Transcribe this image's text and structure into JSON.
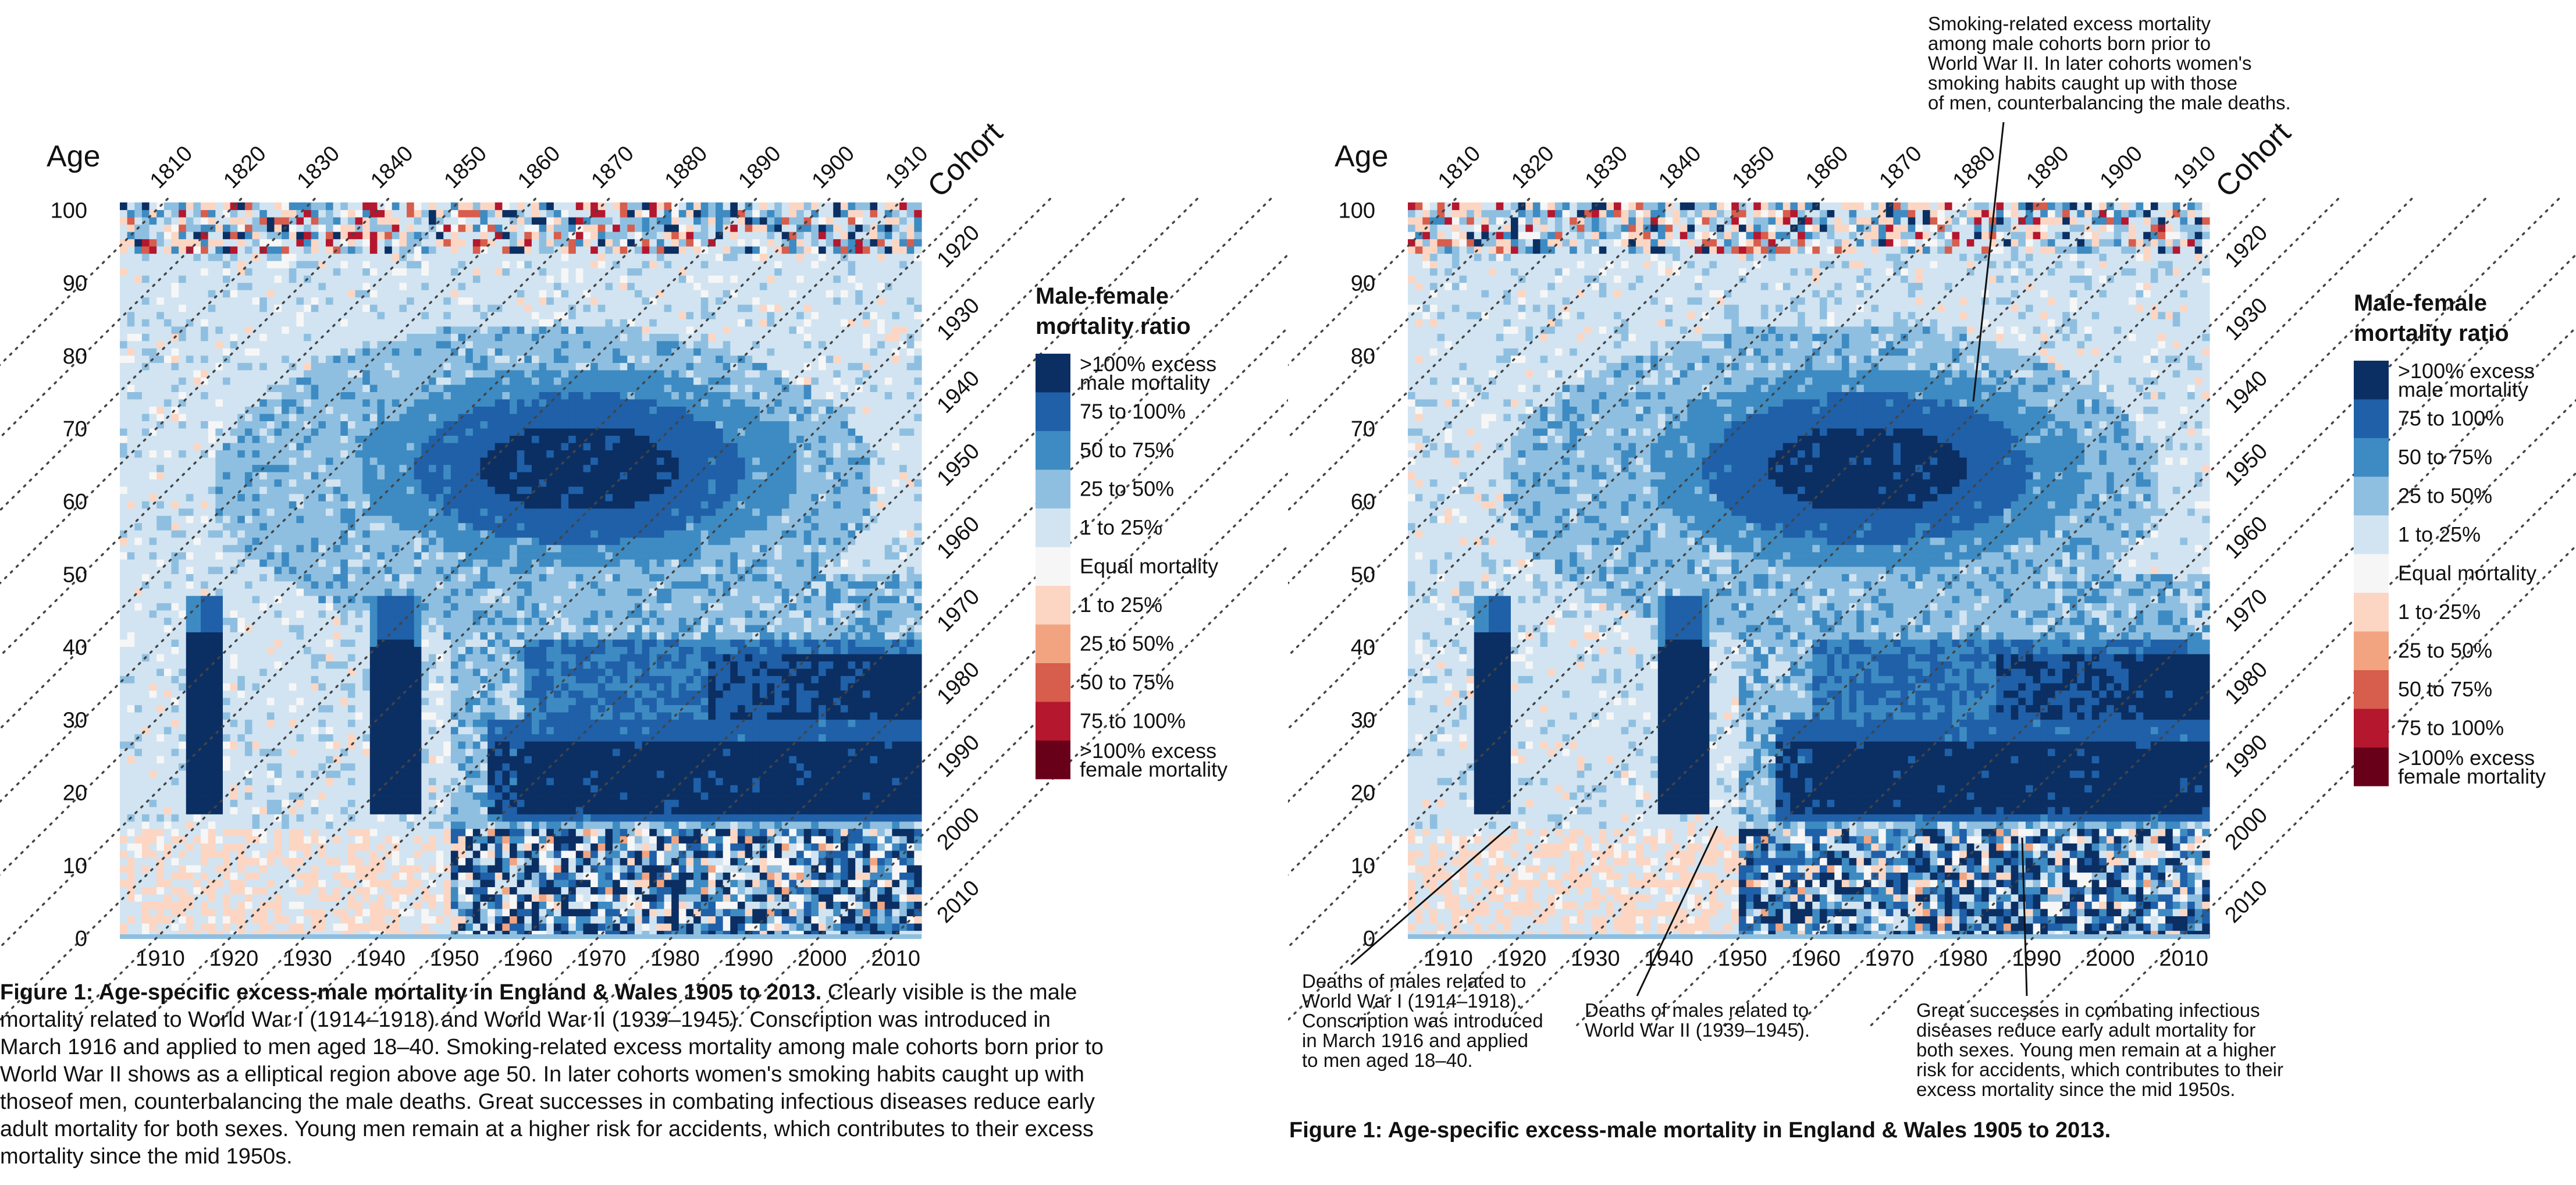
{
  "chart_data": [
    {
      "type": "heatmap",
      "title": "",
      "xlabel": "",
      "ylabel": "Age",
      "cohort_label": "Cohort",
      "x_range": [
        1905,
        2013
      ],
      "y_range": [
        0,
        100
      ],
      "x_ticks": [
        1910,
        1920,
        1930,
        1940,
        1950,
        1960,
        1970,
        1980,
        1990,
        2000,
        2010
      ],
      "y_ticks": [
        0,
        10,
        20,
        30,
        40,
        50,
        60,
        70,
        80,
        90,
        100
      ],
      "cohort_ticks_top": [
        1810,
        1820,
        1830,
        1840,
        1850,
        1860,
        1870,
        1880,
        1890,
        1900,
        1910
      ],
      "cohort_ticks_right": [
        1920,
        1930,
        1940,
        1950,
        1960,
        1970,
        1980,
        1990,
        2000,
        2010
      ],
      "grid": "dotted diagonal cohort lines",
      "legend": {
        "title_line1": "Male-female",
        "title_line2": "mortality ratio",
        "position": "right",
        "items": [
          {
            "label1": ">100% excess",
            "label2": "male mortality",
            "color": "#0b2f63"
          },
          {
            "label1": "75 to 100%",
            "label2": "",
            "color": "#1f60a8"
          },
          {
            "label1": "50 to 75%",
            "label2": "",
            "color": "#3d8bc2"
          },
          {
            "label1": "25 to 50%",
            "label2": "",
            "color": "#8fbfe0"
          },
          {
            "label1": "1 to 25%",
            "label2": "",
            "color": "#d2e4f1"
          },
          {
            "label1": "Equal mortality",
            "label2": "",
            "color": "#f6f6f6"
          },
          {
            "label1": "1 to 25%",
            "label2": "",
            "color": "#fcd6c3"
          },
          {
            "label1": "25 to 50%",
            "label2": "",
            "color": "#f2a481"
          },
          {
            "label1": "50 to 75%",
            "label2": "",
            "color": "#d75d4c"
          },
          {
            "label1": "75 to 100%",
            "label2": "",
            "color": "#b4172e"
          },
          {
            "label1": ">100% excess",
            "label2": "female mortality",
            "color": "#690019"
          }
        ]
      },
      "regions": [
        {
          "name": "World War I",
          "x": [
            1914,
            1918
          ],
          "y": [
            18,
            47
          ],
          "category": ">100% excess male mortality"
        },
        {
          "name": "World War II",
          "x": [
            1939,
            1945
          ],
          "y": [
            18,
            47
          ],
          "category": ">100% excess male mortality"
        },
        {
          "name": "Smoking cohorts",
          "center": [
            1967,
            64
          ],
          "category": ">100% excess male mortality"
        },
        {
          "name": "Young men accidents",
          "x": [
            1955,
            2013
          ],
          "y": [
            15,
            30
          ],
          "category": ">100% excess male mortality"
        }
      ]
    },
    {
      "type": "heatmap",
      "title": "",
      "xlabel": "",
      "ylabel": "Age",
      "cohort_label": "Cohort",
      "x_range": [
        1905,
        2013
      ],
      "y_range": [
        0,
        100
      ],
      "x_ticks": [
        1910,
        1920,
        1930,
        1940,
        1950,
        1960,
        1970,
        1980,
        1990,
        2000,
        2010
      ],
      "y_ticks": [
        0,
        10,
        20,
        30,
        40,
        50,
        60,
        70,
        80,
        90,
        100
      ],
      "cohort_ticks_top": [
        1810,
        1820,
        1830,
        1840,
        1850,
        1860,
        1870,
        1880,
        1890,
        1900,
        1910
      ],
      "cohort_ticks_right": [
        1920,
        1930,
        1940,
        1950,
        1960,
        1970,
        1980,
        1990,
        2000,
        2010
      ],
      "grid": "dotted diagonal cohort lines",
      "legend_same_as_first": true
    }
  ],
  "left_caption": {
    "title": "Figure 1: Age-specific excess-male mortality in England & Wales 1905 to 2013.",
    "lines": [
      "Clearly visible is the male",
      "mortality related to World War I (1914–1918) and World War II (1939–1945). Conscription was introduced in",
      "March 1916 and applied to men aged 18–40. Smoking-related excess mortality among male cohorts born prior to",
      "World War II shows as a elliptical region above age 50. In later cohorts women's smoking habits caught up with",
      "thoseof men, counterbalancing the male deaths. Great successes in combating infectious diseases reduce early",
      "adult mortality for both sexes. Young men remain at a higher risk for accidents, which contributes to their excess",
      "mortality since the mid 1950s."
    ]
  },
  "right_caption": {
    "title": "Figure 1: Age-specific excess-male mortality in England & Wales 1905 to 2013."
  },
  "annotations": {
    "smoking": [
      "Smoking-related excess mortality",
      "among male cohorts born prior to",
      "World War II. In later cohorts women's",
      "smoking habits caught up with those",
      "of men, counterbalancing the male deaths."
    ],
    "ww1": [
      "Deaths of males related to",
      "World War I (1914–1918).",
      "Conscription was introduced",
      "in March 1916 and applied",
      "to men aged 18–40."
    ],
    "ww2": [
      "Deaths of males related to",
      "World War II (1939–1945)."
    ],
    "infectious": [
      "Great successes in combating infectious",
      "diseases reduce early adult mortality for",
      "both sexes. Young men remain at a higher",
      "risk for accidents, which contributes to their",
      "excess mortality since the mid 1950s."
    ]
  }
}
